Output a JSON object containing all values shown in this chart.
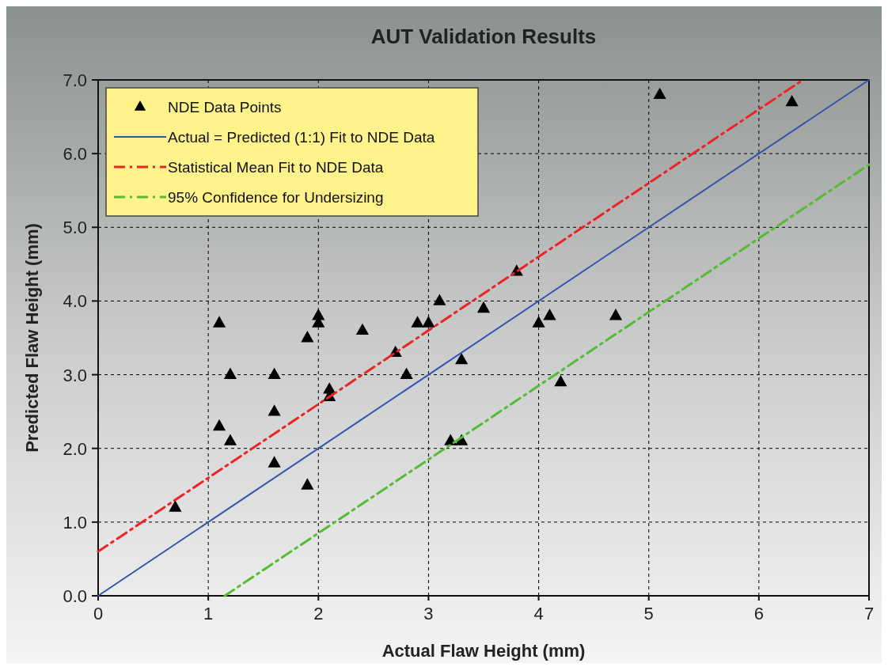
{
  "chart_data": {
    "type": "scatter",
    "title": "AUT Validation Results",
    "xlabel": "Actual Flaw Height (mm)",
    "ylabel": "Predicted Flaw Height (mm)",
    "xlim": [
      0,
      7
    ],
    "xticks": [
      0,
      1,
      2,
      3,
      4,
      5,
      6,
      7
    ],
    "ylim": [
      0,
      7
    ],
    "yticks": [
      {
        "value": 0,
        "label": "0.0"
      },
      {
        "value": 1,
        "label": "1.0"
      },
      {
        "value": 2,
        "label": "2.0"
      },
      {
        "value": 3,
        "label": "3.0"
      },
      {
        "value": 4,
        "label": "4.0"
      },
      {
        "value": 5,
        "label": "5.0"
      },
      {
        "value": 6,
        "label": "6.0"
      },
      {
        "value": 7,
        "label": "7.0"
      }
    ],
    "grid": true,
    "legend": "top left",
    "series": [
      {
        "name": "NDE Data Points",
        "color": "#000000",
        "marker": "triangle",
        "x": [
          0.7,
          1.1,
          1.1,
          1.2,
          1.2,
          1.6,
          1.6,
          1.6,
          1.9,
          1.9,
          2.0,
          2.0,
          2.1,
          2.1,
          2.4,
          2.7,
          2.8,
          2.9,
          3.0,
          3.1,
          3.2,
          3.3,
          3.3,
          3.5,
          3.8,
          4.0,
          4.1,
          4.2,
          4.7,
          5.1,
          6.3
        ],
        "values": [
          1.2,
          3.7,
          2.3,
          3.0,
          2.1,
          3.0,
          2.5,
          1.8,
          3.5,
          1.5,
          3.8,
          3.7,
          2.8,
          2.7,
          3.6,
          3.3,
          3.0,
          3.7,
          3.7,
          4.0,
          2.1,
          2.1,
          3.2,
          3.9,
          4.4,
          3.7,
          3.8,
          2.9,
          3.8,
          6.8,
          6.7
        ]
      },
      {
        "name": "Actual = Predicted (1:1) Fit to NDE Data",
        "type": "line",
        "color": "#3355aa",
        "line_style": "solid",
        "marker": "none",
        "x": [
          0,
          7
        ],
        "values": [
          0,
          7
        ]
      },
      {
        "name": "Statistical Mean Fit to NDE Data",
        "type": "line",
        "color": "#ee2222",
        "line_style": "dashed",
        "marker": "none",
        "x": [
          0,
          6.4
        ],
        "values": [
          0.6,
          7.0
        ]
      },
      {
        "name": "95% Confidence for Undersizing",
        "type": "line",
        "color": "#55bb33",
        "line_style": "dashed",
        "marker": "none",
        "x": [
          1.15,
          7
        ],
        "values": [
          0,
          5.85
        ]
      }
    ]
  }
}
